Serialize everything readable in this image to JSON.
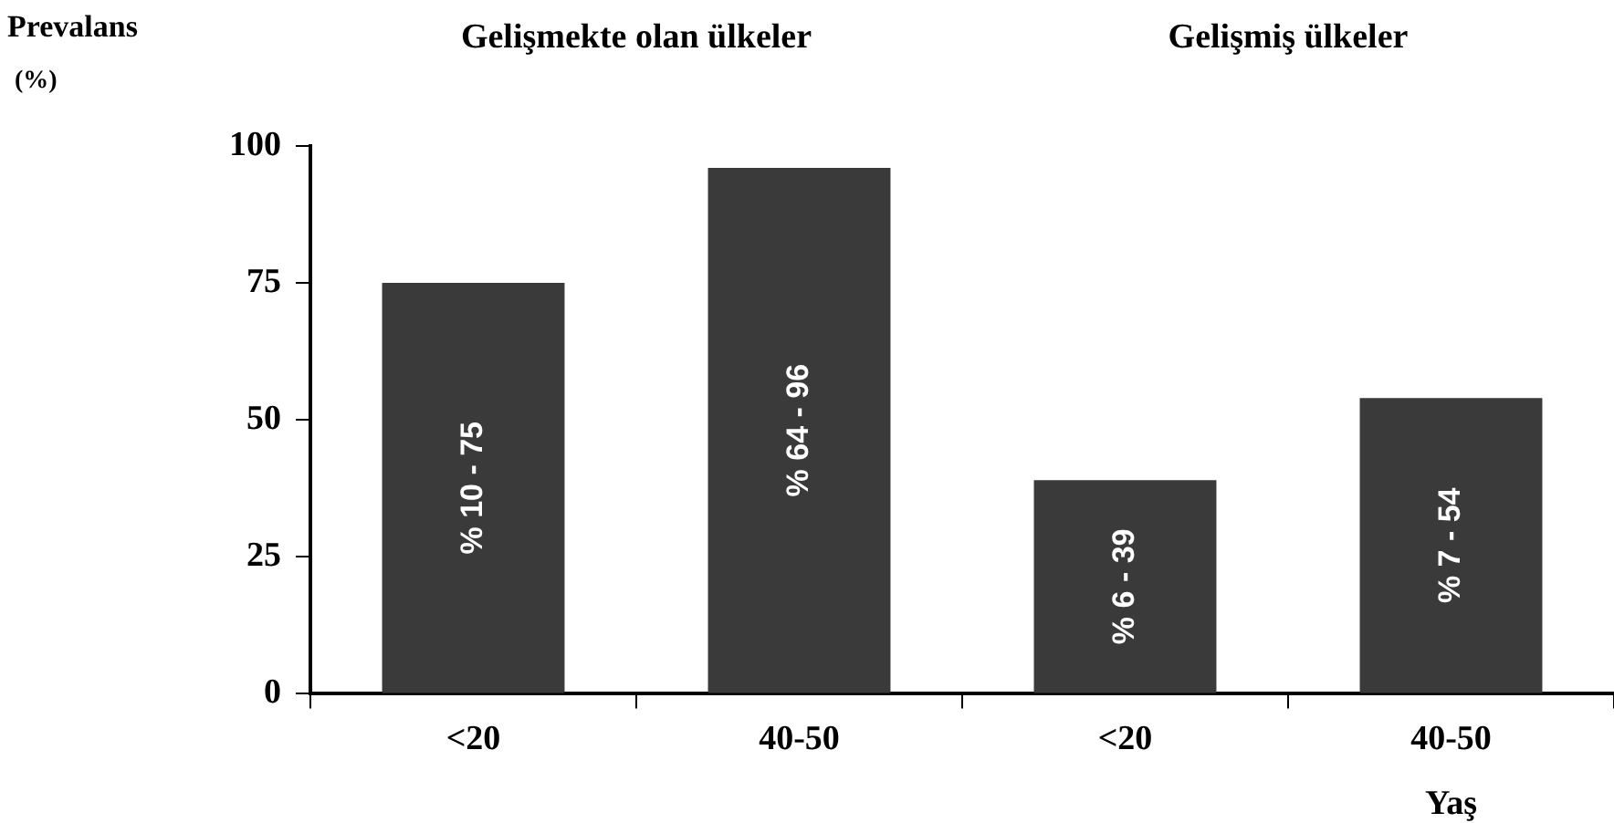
{
  "chart_data": {
    "type": "bar",
    "ylabel": "Prevalans (%)",
    "xlabel": "Yaş",
    "annotations": [
      "Gelişmekte olan ülkeler",
      "Gelişmiş ülkeler",
      "% 10 - 75",
      "% 64 - 96",
      "% 6 - 39",
      "% 7 - 54"
    ],
    "categories": [
      "<20",
      "40-50",
      "<20",
      "40-50"
    ],
    "values": [
      75,
      96,
      39,
      54
    ],
    "color": "#3a3a3a",
    "ylim": [
      0,
      100
    ],
    "yticks": [
      0,
      25,
      50,
      75,
      100
    ],
    "grid": false,
    "legend": false
  }
}
